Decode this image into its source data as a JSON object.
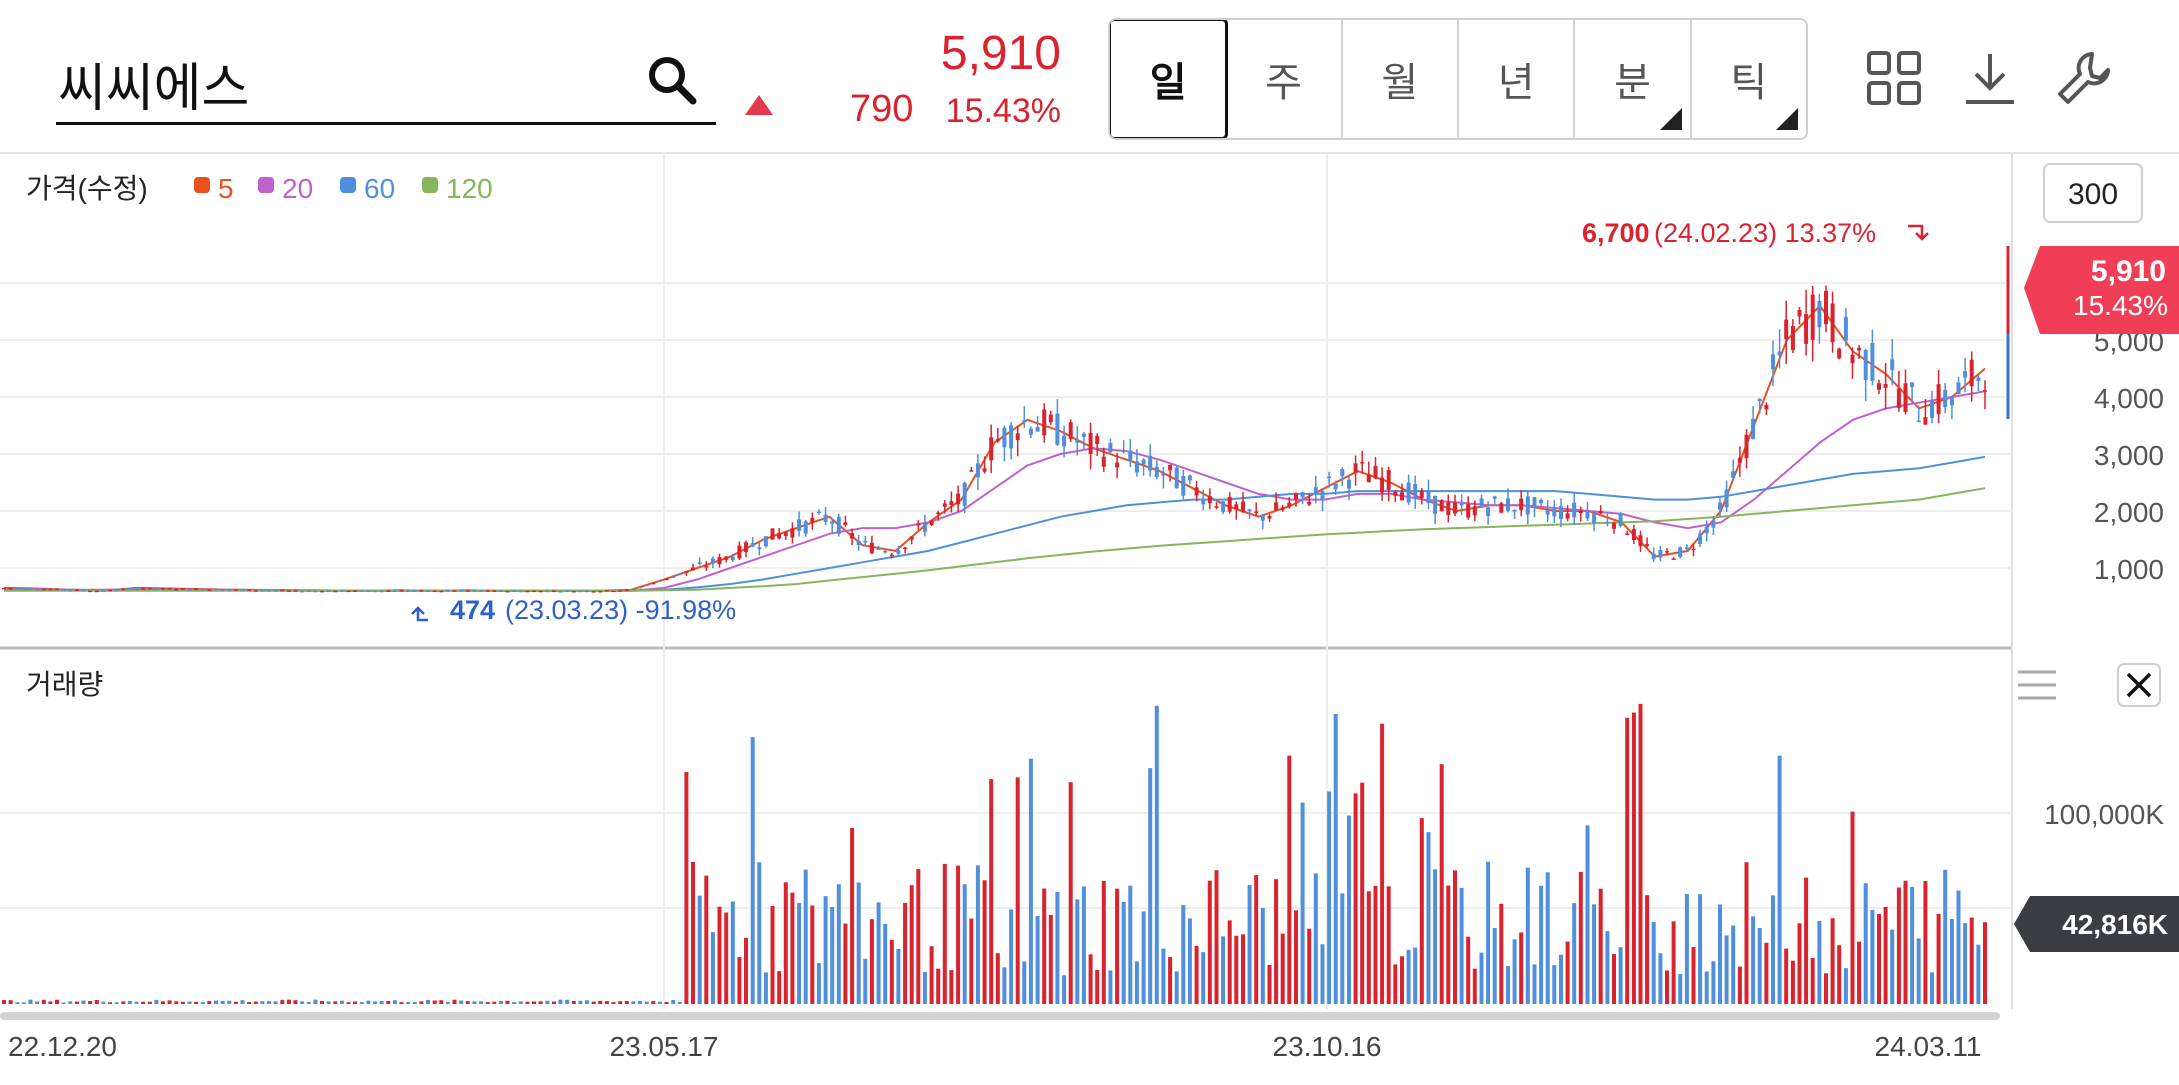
{
  "search": {
    "value": "씨씨에스"
  },
  "quote": {
    "price": "5,910",
    "change": "790",
    "rate": "15.43%",
    "direction": "up",
    "up_color": "#d9232e"
  },
  "periods": [
    {
      "label": "일",
      "active": true,
      "has_menu": false
    },
    {
      "label": "주",
      "active": false,
      "has_menu": false
    },
    {
      "label": "월",
      "active": false,
      "has_menu": false
    },
    {
      "label": "년",
      "active": false,
      "has_menu": false
    },
    {
      "label": "분",
      "active": false,
      "has_menu": true
    },
    {
      "label": "틱",
      "active": false,
      "has_menu": true
    }
  ],
  "tools": {
    "layout": "grid-icon",
    "download": "download-icon",
    "settings": "wrench-icon"
  },
  "price_panel": {
    "title": "가격(수정)",
    "count_button": "300",
    "ma_legend": [
      {
        "label": "5",
        "color": "#e8501e"
      },
      {
        "label": "20",
        "color": "#c061d0"
      },
      {
        "label": "60",
        "color": "#4f8fdc"
      },
      {
        "label": "120",
        "color": "#86b55a"
      }
    ],
    "y_ticks": [
      "5,000",
      "4,000",
      "3,000",
      "2,000",
      "1,000"
    ],
    "last_tag": {
      "price": "5,910",
      "rate": "15.43%"
    },
    "high_annotation": {
      "value": "6,700",
      "detail": "(24.02.23) 13.37%"
    },
    "low_annotation": {
      "value": "474",
      "detail": "(23.03.23) -91.98%"
    }
  },
  "volume_panel": {
    "title": "거래량",
    "y_ticks": [
      "100,000K"
    ],
    "last_tag": "42,816K"
  },
  "x_labels": [
    "22.12.20",
    "23.05.17",
    "23.10.16",
    "24.03.11"
  ],
  "chart_data": [
    {
      "type": "candlestick",
      "y_range": [
        0,
        7000
      ],
      "y_ticks": [
        1000,
        2000,
        3000,
        4000,
        5000
      ],
      "x_range": [
        "22.12.20",
        "24.03.11"
      ],
      "series": [
        {
          "name": "5",
          "values": [
            650,
            640,
            620,
            600,
            650,
            640,
            630,
            620,
            610,
            600,
            600,
            600,
            610,
            600,
            610,
            600,
            600,
            600,
            600,
            620,
            800,
            1000,
            1200,
            1500,
            1700,
            1900,
            1400,
            1300,
            1800,
            2200,
            3200,
            3600,
            3400,
            3100,
            2900,
            2700,
            2400,
            2100,
            1900,
            2100,
            2400,
            2700,
            2500,
            2200,
            2000,
            2100,
            2100,
            2000,
            2000,
            1800,
            1200,
            1300,
            2000,
            3500,
            5000,
            5600,
            4800,
            4400,
            3800,
            4000,
            4500
          ]
        },
        {
          "name": "20",
          "values": [
            630,
            630,
            620,
            620,
            630,
            630,
            620,
            620,
            615,
            610,
            605,
            600,
            600,
            600,
            600,
            600,
            600,
            600,
            600,
            600,
            650,
            800,
            1000,
            1200,
            1400,
            1600,
            1700,
            1700,
            1800,
            2000,
            2400,
            2800,
            3000,
            3100,
            3050,
            2900,
            2700,
            2500,
            2300,
            2200,
            2200,
            2300,
            2300,
            2200,
            2150,
            2100,
            2100,
            2050,
            2000,
            1950,
            1800,
            1700,
            1800,
            2200,
            2700,
            3200,
            3600,
            3800,
            3900,
            4000,
            4100
          ]
        },
        {
          "name": "60",
          "values": [
            610,
            610,
            610,
            610,
            610,
            610,
            610,
            610,
            610,
            610,
            605,
            600,
            600,
            600,
            600,
            600,
            600,
            600,
            600,
            600,
            620,
            660,
            720,
            800,
            900,
            1000,
            1100,
            1200,
            1300,
            1450,
            1600,
            1750,
            1900,
            2000,
            2100,
            2150,
            2200,
            2200,
            2250,
            2300,
            2300,
            2350,
            2350,
            2350,
            2350,
            2350,
            2350,
            2350,
            2300,
            2250,
            2200,
            2200,
            2250,
            2350,
            2450,
            2550,
            2650,
            2700,
            2750,
            2850,
            2950
          ]
        },
        {
          "name": "120",
          "values": [
            600,
            600,
            600,
            600,
            600,
            600,
            600,
            600,
            600,
            600,
            600,
            600,
            600,
            600,
            600,
            600,
            600,
            600,
            600,
            600,
            610,
            620,
            650,
            680,
            720,
            780,
            840,
            900,
            960,
            1030,
            1100,
            1170,
            1230,
            1290,
            1340,
            1390,
            1430,
            1470,
            1510,
            1550,
            1590,
            1620,
            1650,
            1680,
            1700,
            1720,
            1740,
            1760,
            1780,
            1800,
            1820,
            1860,
            1900,
            1950,
            2000,
            2050,
            2100,
            2150,
            2200,
            2300,
            2400
          ]
        }
      ],
      "annotations": [
        {
          "label": "6,700",
          "date": "24.02.23",
          "value": 6700,
          "note": "13.37%"
        },
        {
          "label": "474",
          "date": "23.03.23",
          "value": 474,
          "note": "-91.98%"
        }
      ],
      "last": {
        "value": 5910,
        "rate": "15.43%"
      }
    },
    {
      "type": "bar",
      "name": "거래량",
      "y_unit": "K",
      "y_range": [
        0,
        170000
      ],
      "y_ticks": [
        100000
      ],
      "last": 42816,
      "colors": {
        "up": "#d9232e",
        "down": "#4f8fdc"
      }
    }
  ]
}
